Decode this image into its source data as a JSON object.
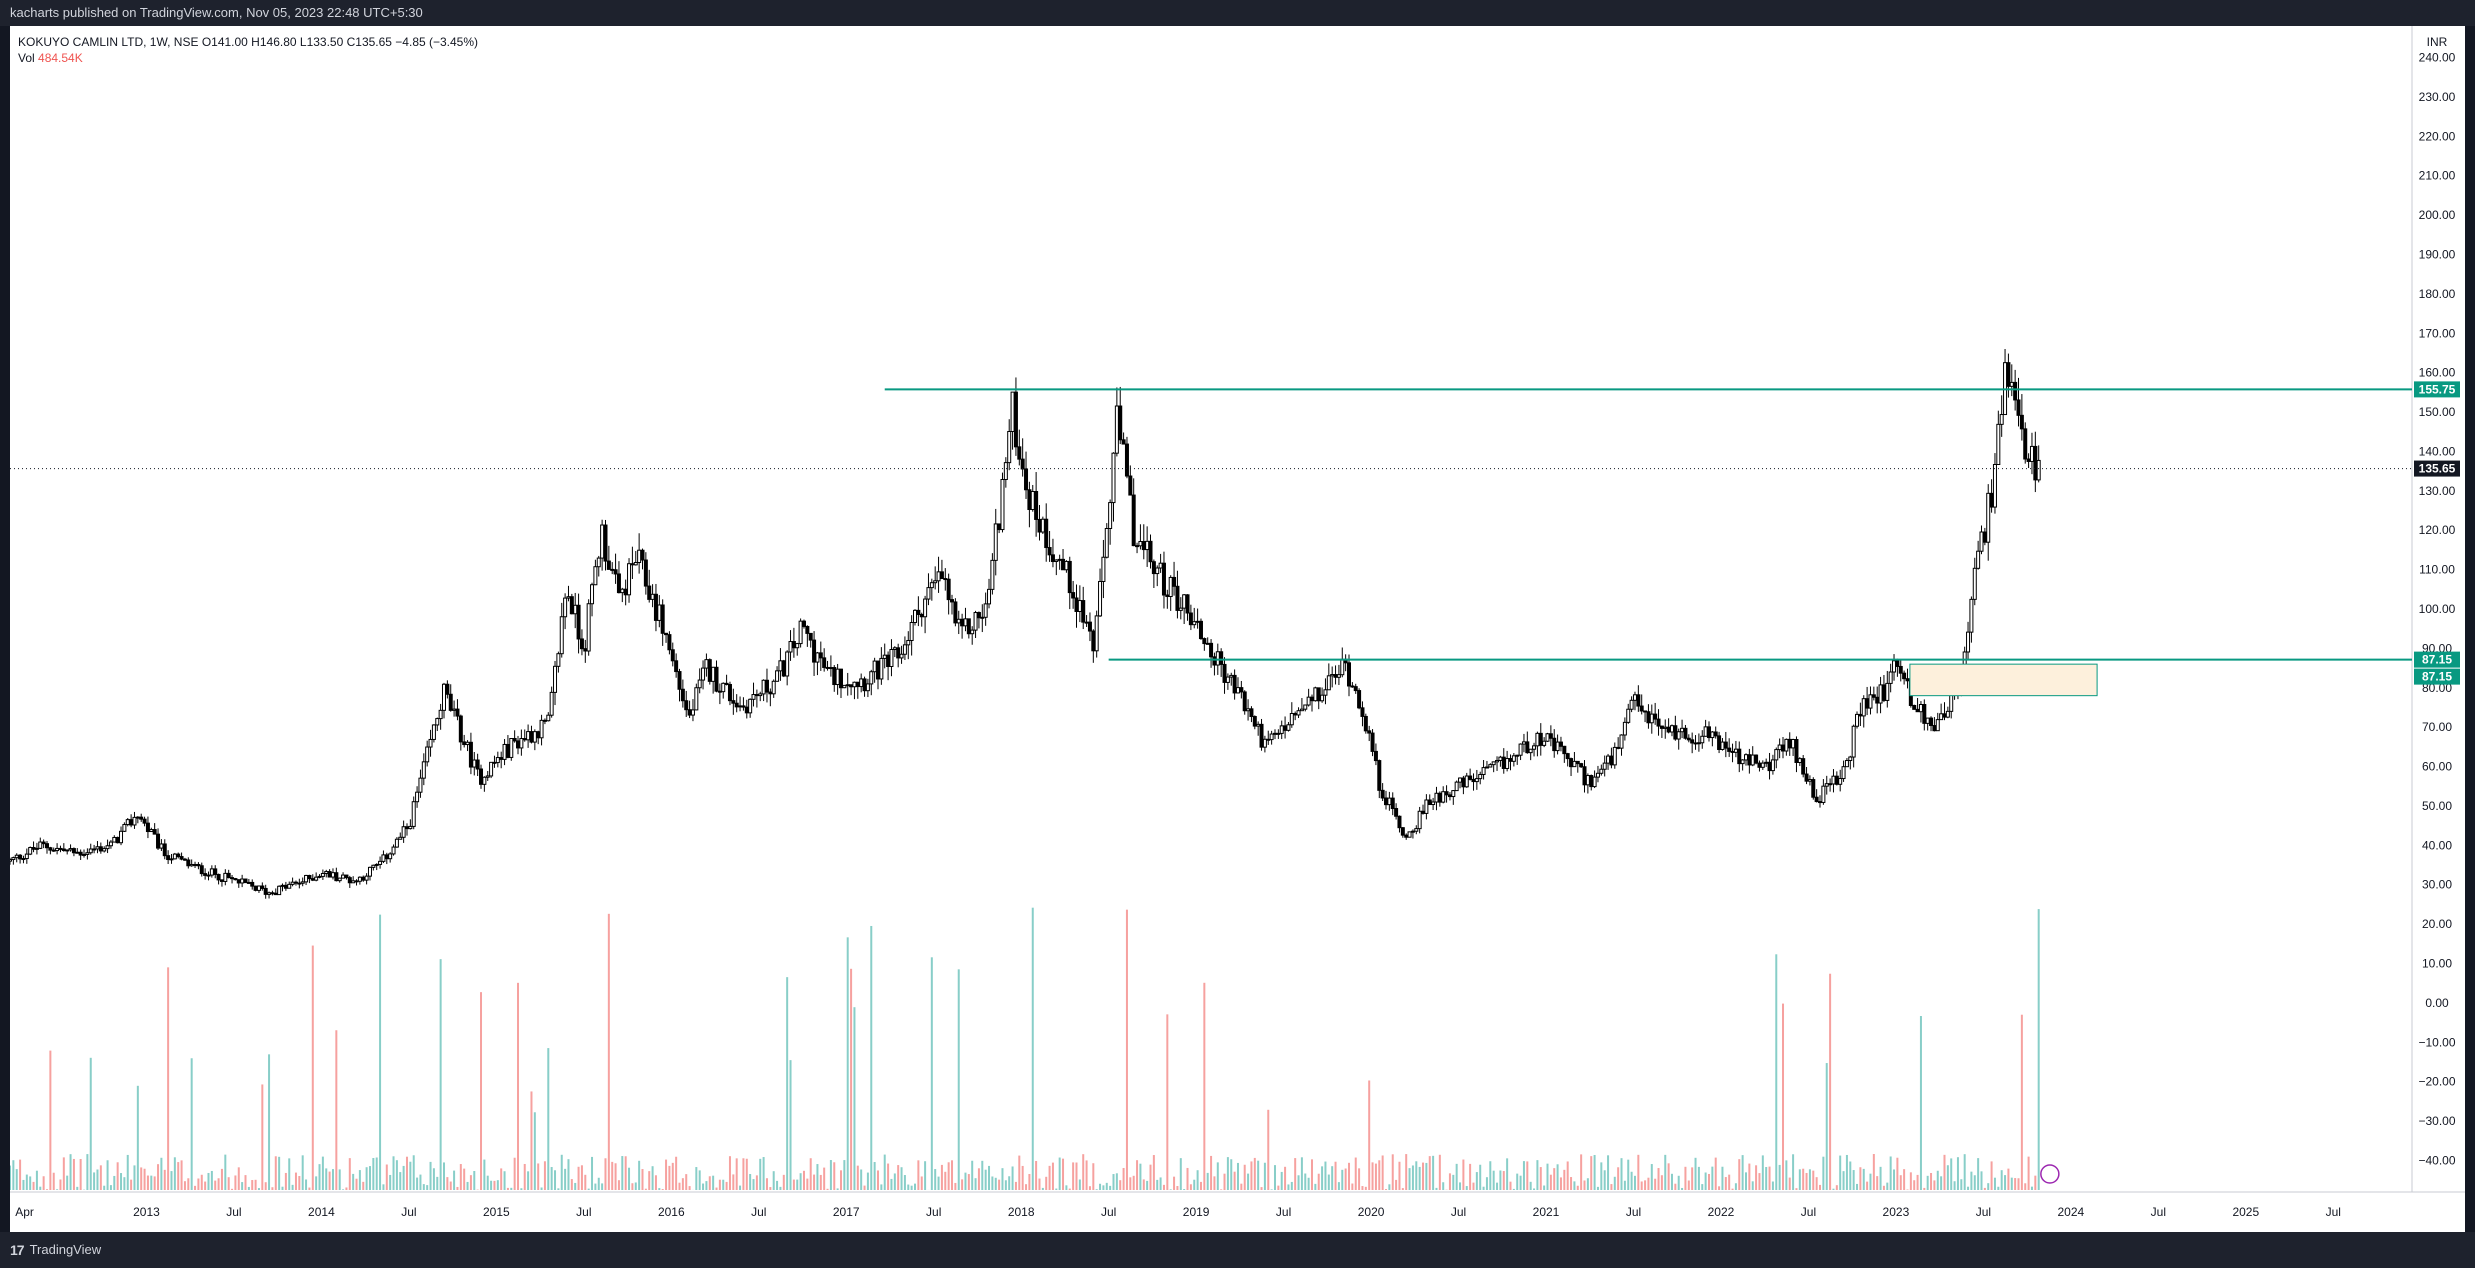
{
  "header": {
    "published": "kacharts published on TradingView.com, Nov 05, 2023 22:48 UTC+5:30"
  },
  "legend": {
    "symbol_line": "KOKUYO CAMLIN LTD, 1W, NSE  O141.00  H146.80  L133.50  C135.65  −4.85 (−3.45%)",
    "vol_label": "Vol",
    "vol_value": "484.54K"
  },
  "footer": {
    "brand": "TradingView"
  },
  "colors": {
    "up_vol": "#26a69a",
    "down_vol": "#ef5350",
    "level_line": "#089981",
    "zone_fill": "#fdf0dc",
    "candle": "#000000"
  },
  "chart_data": {
    "type": "candlestick",
    "currency_label": "INR",
    "price_ticks": [
      "240.00",
      "230.00",
      "220.00",
      "210.00",
      "200.00",
      "190.00",
      "180.00",
      "170.00",
      "160.00",
      "150.00",
      "140.00",
      "130.00",
      "120.00",
      "110.00",
      "100.00",
      "90.00",
      "80.00",
      "70.00",
      "60.00",
      "50.00",
      "40.00",
      "30.00",
      "20.00",
      "10.00",
      "0.00",
      "−10.00",
      "−20.00",
      "−30.00",
      "−40.00"
    ],
    "price_range": [
      -48,
      248
    ],
    "time_labels": [
      "Apr",
      "2013",
      "Jul",
      "2014",
      "Jul",
      "2015",
      "Jul",
      "2016",
      "Jul",
      "2017",
      "Jul",
      "2018",
      "Jul",
      "2019",
      "Jul",
      "2020",
      "Jul",
      "2021",
      "Jul",
      "2022",
      "Jul",
      "2023",
      "Jul",
      "2024",
      "Jul",
      "2025",
      "Jul"
    ],
    "time_label_dates": [
      2012.25,
      2013.0,
      2013.5,
      2014.0,
      2014.5,
      2015.0,
      2015.5,
      2016.0,
      2016.5,
      2017.0,
      2017.5,
      2018.0,
      2018.5,
      2019.0,
      2019.5,
      2020.0,
      2020.5,
      2021.0,
      2021.5,
      2022.0,
      2022.5,
      2023.0,
      2023.5,
      2024.0,
      2024.5,
      2025.0,
      2025.5
    ],
    "time_range": [
      2012.22,
      2025.95
    ],
    "price_path": [
      [
        2012.22,
        36
      ],
      [
        2012.4,
        40
      ],
      [
        2012.6,
        38
      ],
      [
        2012.8,
        40
      ],
      [
        2012.95,
        48
      ],
      [
        2013.1,
        38
      ],
      [
        2013.3,
        34
      ],
      [
        2013.5,
        31
      ],
      [
        2013.7,
        28
      ],
      [
        2013.9,
        31
      ],
      [
        2014.0,
        33
      ],
      [
        2014.2,
        31
      ],
      [
        2014.35,
        36
      ],
      [
        2014.5,
        45
      ],
      [
        2014.7,
        79
      ],
      [
        2014.9,
        57
      ],
      [
        2015.1,
        66
      ],
      [
        2015.3,
        71
      ],
      [
        2015.4,
        106
      ],
      [
        2015.5,
        90
      ],
      [
        2015.6,
        120
      ],
      [
        2015.7,
        102
      ],
      [
        2015.8,
        113
      ],
      [
        2015.95,
        96
      ],
      [
        2016.1,
        72
      ],
      [
        2016.2,
        85
      ],
      [
        2016.4,
        75
      ],
      [
        2016.6,
        82
      ],
      [
        2016.75,
        95
      ],
      [
        2016.9,
        83
      ],
      [
        2017.1,
        82
      ],
      [
        2017.3,
        88
      ],
      [
        2017.45,
        103
      ],
      [
        2017.55,
        108
      ],
      [
        2017.65,
        93
      ],
      [
        2017.8,
        100
      ],
      [
        2017.95,
        150
      ],
      [
        2018.05,
        128
      ],
      [
        2018.15,
        118
      ],
      [
        2018.3,
        105
      ],
      [
        2018.42,
        90
      ],
      [
        2018.55,
        148
      ],
      [
        2018.65,
        118
      ],
      [
        2018.8,
        108
      ],
      [
        2018.95,
        100
      ],
      [
        2019.1,
        88
      ],
      [
        2019.25,
        78
      ],
      [
        2019.4,
        65
      ],
      [
        2019.55,
        72
      ],
      [
        2019.7,
        78
      ],
      [
        2019.85,
        86
      ],
      [
        2019.95,
        75
      ],
      [
        2020.05,
        55
      ],
      [
        2020.2,
        42
      ],
      [
        2020.35,
        52
      ],
      [
        2020.5,
        55
      ],
      [
        2020.65,
        58
      ],
      [
        2020.8,
        62
      ],
      [
        2020.95,
        68
      ],
      [
        2021.1,
        63
      ],
      [
        2021.25,
        56
      ],
      [
        2021.4,
        63
      ],
      [
        2021.5,
        76
      ],
      [
        2021.65,
        70
      ],
      [
        2021.8,
        68
      ],
      [
        2021.95,
        68
      ],
      [
        2022.1,
        62
      ],
      [
        2022.25,
        60
      ],
      [
        2022.4,
        66
      ],
      [
        2022.55,
        52
      ],
      [
        2022.7,
        58
      ],
      [
        2022.8,
        75
      ],
      [
        2022.95,
        80
      ],
      [
        2023.0,
        88
      ],
      [
        2023.1,
        76
      ],
      [
        2023.2,
        70
      ],
      [
        2023.3,
        76
      ],
      [
        2023.38,
        82
      ],
      [
        2023.45,
        108
      ],
      [
        2023.55,
        130
      ],
      [
        2023.62,
        158
      ],
      [
        2023.68,
        150
      ],
      [
        2023.75,
        138
      ],
      [
        2023.82,
        136
      ]
    ],
    "levels": [
      {
        "price": 155.75,
        "label": "155.75",
        "x_start": 2017.22
      },
      {
        "price": 87.15,
        "label": "87.15",
        "x_start": 2018.5
      }
    ],
    "zone": {
      "x_start": 2023.08,
      "x_end": 2024.15,
      "price_high": 86,
      "price_low": 78,
      "zone_label": "87.15"
    },
    "last_price": {
      "price": 135.65,
      "label": "135.65"
    }
  }
}
